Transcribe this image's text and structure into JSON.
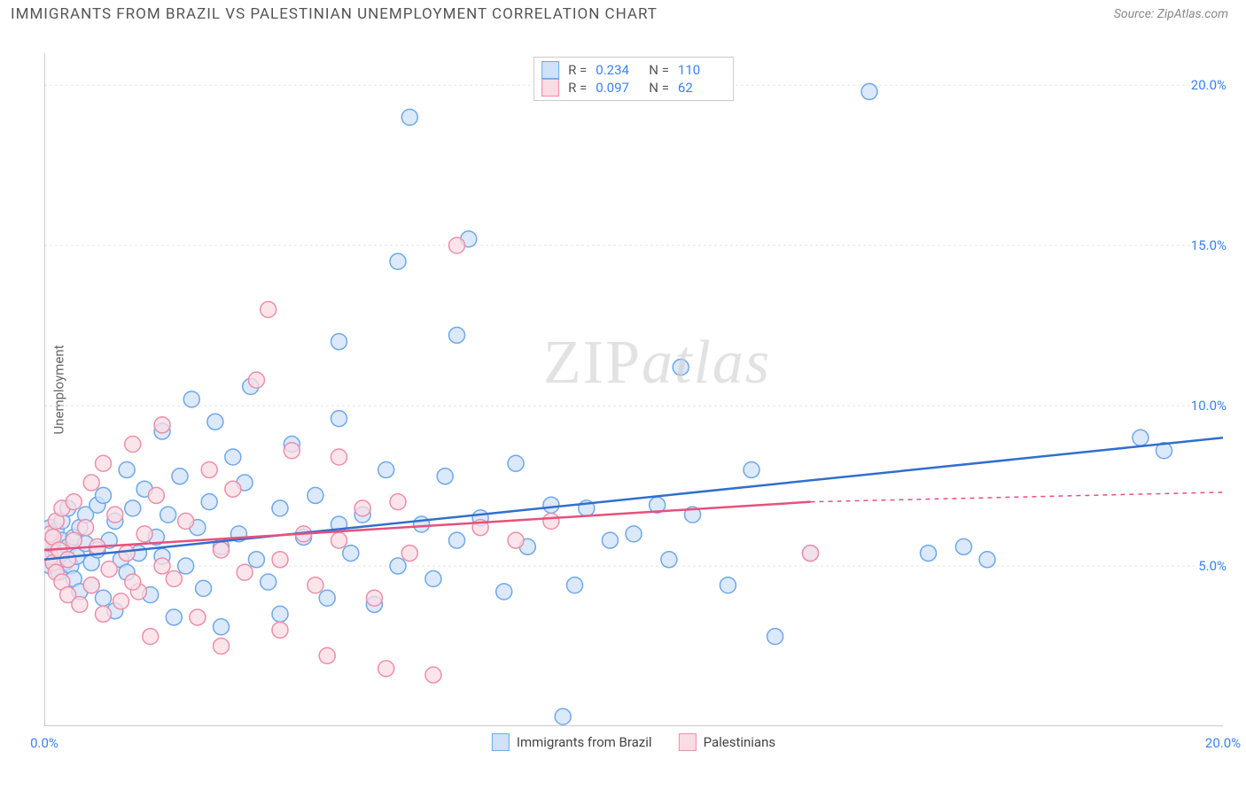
{
  "meta": {
    "title": "IMMIGRANTS FROM BRAZIL VS PALESTINIAN UNEMPLOYMENT CORRELATION CHART",
    "source_label": "Source: ZipAtlas.com",
    "watermark_zip": "ZIP",
    "watermark_atlas": "atlas"
  },
  "chart": {
    "type": "scatter",
    "ylabel": "Unemployment",
    "xlim": [
      0,
      20
    ],
    "ylim": [
      0,
      21
    ],
    "xtick_labels": {
      "0": "0.0%",
      "20": "20.0%"
    },
    "ytick_labels": {
      "5": "5.0%",
      "10": "10.0%",
      "15": "15.0%",
      "20": "20.0%"
    },
    "xtick_marks": [
      0,
      2,
      4,
      6,
      8,
      10,
      12,
      14,
      16,
      18,
      20
    ],
    "grid_color": "#e5e5e5",
    "axis_color": "#999999",
    "background_color": "#ffffff",
    "marker_radius": 9,
    "marker_stroke_width": 1.5,
    "line_width": 2.5,
    "series": [
      {
        "name": "Immigrants from Brazil",
        "fill": "#cfe2f9",
        "stroke": "#6fa8e8",
        "line_color": "#2f6fd0",
        "r": 0.234,
        "n": 110,
        "trend": {
          "x1": 0,
          "y1": 5.2,
          "x2": 20,
          "y2": 9.0
        },
        "trend_dashed_from": 20,
        "points": [
          [
            0.05,
            5.4
          ],
          [
            0.05,
            5.6
          ],
          [
            0.05,
            5.8
          ],
          [
            0.1,
            5.2
          ],
          [
            0.1,
            5.6
          ],
          [
            0.1,
            6.0
          ],
          [
            0.1,
            6.2
          ],
          [
            0.1,
            5.0
          ],
          [
            0.15,
            5.4
          ],
          [
            0.15,
            5.9
          ],
          [
            0.2,
            5.0
          ],
          [
            0.2,
            5.5
          ],
          [
            0.2,
            6.1
          ],
          [
            0.2,
            5.3
          ],
          [
            0.25,
            4.8
          ],
          [
            0.3,
            5.8
          ],
          [
            0.3,
            6.4
          ],
          [
            0.35,
            5.1
          ],
          [
            0.4,
            5.6
          ],
          [
            0.4,
            6.8
          ],
          [
            0.45,
            5.0
          ],
          [
            0.5,
            4.6
          ],
          [
            0.5,
            5.9
          ],
          [
            0.55,
            5.3
          ],
          [
            0.6,
            6.2
          ],
          [
            0.6,
            4.2
          ],
          [
            0.7,
            5.7
          ],
          [
            0.7,
            6.6
          ],
          [
            0.8,
            5.1
          ],
          [
            0.8,
            4.4
          ],
          [
            0.9,
            6.9
          ],
          [
            0.9,
            5.5
          ],
          [
            1.0,
            4.0
          ],
          [
            1.0,
            7.2
          ],
          [
            1.1,
            5.8
          ],
          [
            1.2,
            6.4
          ],
          [
            1.2,
            3.6
          ],
          [
            1.3,
            5.2
          ],
          [
            1.4,
            8.0
          ],
          [
            1.4,
            4.8
          ],
          [
            1.5,
            6.8
          ],
          [
            1.6,
            5.4
          ],
          [
            1.7,
            7.4
          ],
          [
            1.8,
            4.1
          ],
          [
            1.9,
            5.9
          ],
          [
            2.0,
            9.2
          ],
          [
            2.0,
            5.3
          ],
          [
            2.1,
            6.6
          ],
          [
            2.2,
            3.4
          ],
          [
            2.3,
            7.8
          ],
          [
            2.4,
            5.0
          ],
          [
            2.5,
            10.2
          ],
          [
            2.6,
            6.2
          ],
          [
            2.7,
            4.3
          ],
          [
            2.8,
            7.0
          ],
          [
            2.9,
            9.5
          ],
          [
            3.0,
            5.6
          ],
          [
            3.0,
            3.1
          ],
          [
            3.2,
            8.4
          ],
          [
            3.3,
            6.0
          ],
          [
            3.4,
            7.6
          ],
          [
            3.5,
            10.6
          ],
          [
            3.6,
            5.2
          ],
          [
            3.8,
            4.5
          ],
          [
            4.0,
            6.8
          ],
          [
            4.0,
            3.5
          ],
          [
            4.2,
            8.8
          ],
          [
            4.4,
            5.9
          ],
          [
            4.6,
            7.2
          ],
          [
            4.8,
            4.0
          ],
          [
            5.0,
            9.6
          ],
          [
            5.0,
            12.0
          ],
          [
            5.2,
            5.4
          ],
          [
            5.4,
            6.6
          ],
          [
            5.6,
            3.8
          ],
          [
            5.8,
            8.0
          ],
          [
            6.0,
            5.0
          ],
          [
            6.0,
            14.5
          ],
          [
            6.2,
            19.0
          ],
          [
            6.4,
            6.3
          ],
          [
            6.6,
            4.6
          ],
          [
            6.8,
            7.8
          ],
          [
            7.0,
            5.8
          ],
          [
            7.0,
            12.2
          ],
          [
            7.2,
            15.2
          ],
          [
            7.4,
            6.5
          ],
          [
            7.8,
            4.2
          ],
          [
            8.0,
            8.2
          ],
          [
            8.2,
            5.6
          ],
          [
            8.6,
            6.9
          ],
          [
            8.8,
            0.3
          ],
          [
            9.0,
            4.4
          ],
          [
            9.2,
            6.8
          ],
          [
            9.6,
            5.8
          ],
          [
            10.0,
            6.0
          ],
          [
            10.4,
            6.9
          ],
          [
            10.6,
            5.2
          ],
          [
            10.8,
            11.2
          ],
          [
            11.0,
            6.6
          ],
          [
            11.6,
            4.4
          ],
          [
            12.0,
            8.0
          ],
          [
            12.4,
            2.8
          ],
          [
            13.0,
            5.4
          ],
          [
            14.0,
            19.8
          ],
          [
            15.0,
            5.4
          ],
          [
            15.6,
            5.6
          ],
          [
            16.0,
            5.2
          ],
          [
            18.6,
            9.0
          ],
          [
            19.0,
            8.6
          ],
          [
            5.0,
            6.3
          ]
        ]
      },
      {
        "name": "Palestinians",
        "fill": "#fadce4",
        "stroke": "#ec8fa8",
        "line_color": "#e94f7c",
        "r": 0.097,
        "n": 62,
        "trend": {
          "x1": 0,
          "y1": 5.5,
          "x2": 13,
          "y2": 7.0
        },
        "trend_dashed": {
          "x1": 13,
          "y1": 7.0,
          "x2": 20,
          "y2": 7.3
        },
        "points": [
          [
            0.1,
            5.3
          ],
          [
            0.1,
            5.7
          ],
          [
            0.1,
            6.0
          ],
          [
            0.15,
            5.1
          ],
          [
            0.15,
            5.9
          ],
          [
            0.2,
            4.8
          ],
          [
            0.2,
            6.4
          ],
          [
            0.25,
            5.5
          ],
          [
            0.3,
            4.5
          ],
          [
            0.3,
            6.8
          ],
          [
            0.4,
            5.2
          ],
          [
            0.4,
            4.1
          ],
          [
            0.5,
            7.0
          ],
          [
            0.5,
            5.8
          ],
          [
            0.6,
            3.8
          ],
          [
            0.7,
            6.2
          ],
          [
            0.8,
            4.4
          ],
          [
            0.8,
            7.6
          ],
          [
            0.9,
            5.6
          ],
          [
            1.0,
            3.5
          ],
          [
            1.0,
            8.2
          ],
          [
            1.1,
            4.9
          ],
          [
            1.2,
            6.6
          ],
          [
            1.3,
            3.9
          ],
          [
            1.4,
            5.4
          ],
          [
            1.5,
            8.8
          ],
          [
            1.6,
            4.2
          ],
          [
            1.7,
            6.0
          ],
          [
            1.8,
            2.8
          ],
          [
            1.9,
            7.2
          ],
          [
            2.0,
            5.0
          ],
          [
            2.0,
            9.4
          ],
          [
            2.2,
            4.6
          ],
          [
            2.4,
            6.4
          ],
          [
            2.6,
            3.4
          ],
          [
            2.8,
            8.0
          ],
          [
            3.0,
            5.5
          ],
          [
            3.0,
            2.5
          ],
          [
            3.2,
            7.4
          ],
          [
            3.4,
            4.8
          ],
          [
            3.6,
            10.8
          ],
          [
            3.8,
            13.0
          ],
          [
            4.0,
            5.2
          ],
          [
            4.0,
            3.0
          ],
          [
            4.2,
            8.6
          ],
          [
            4.4,
            6.0
          ],
          [
            4.6,
            4.4
          ],
          [
            4.8,
            2.2
          ],
          [
            5.0,
            8.4
          ],
          [
            5.0,
            5.8
          ],
          [
            5.4,
            6.8
          ],
          [
            5.6,
            4.0
          ],
          [
            5.8,
            1.8
          ],
          [
            6.0,
            7.0
          ],
          [
            6.2,
            5.4
          ],
          [
            6.6,
            1.6
          ],
          [
            7.0,
            15.0
          ],
          [
            7.4,
            6.2
          ],
          [
            8.0,
            5.8
          ],
          [
            8.6,
            6.4
          ],
          [
            1.5,
            4.5
          ],
          [
            13.0,
            5.4
          ]
        ]
      }
    ]
  },
  "legend": {
    "r_label": "R =",
    "n_label": "N ="
  }
}
